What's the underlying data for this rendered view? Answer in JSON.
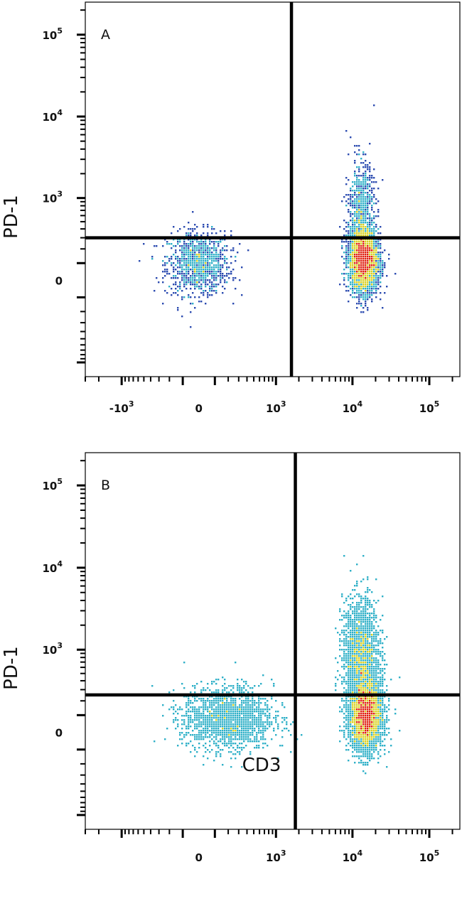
{
  "xlabel": "CD3",
  "ylabel": "PD-1",
  "chart_data": [
    {
      "type": "scatter",
      "panel_label": "A",
      "xlabel": "",
      "ylabel": "PD-1",
      "x_scale": "biexponential",
      "y_scale": "biexponential",
      "xlim": [
        -3000,
        250000
      ],
      "ylim": [
        -1500,
        250000
      ],
      "x_ticks": [
        {
          "value": -1000,
          "base": "-10",
          "exp": "3"
        },
        {
          "value": 0,
          "base": "0",
          "exp": ""
        },
        {
          "value": 1000,
          "base": "10",
          "exp": "3"
        },
        {
          "value": 10000,
          "base": "10",
          "exp": "4"
        },
        {
          "value": 100000,
          "base": "10",
          "exp": "5"
        }
      ],
      "y_ticks": [
        {
          "value": 0,
          "base": "0",
          "exp": ""
        },
        {
          "value": 1000,
          "base": "10",
          "exp": "3"
        },
        {
          "value": 10000,
          "base": "10",
          "exp": "4"
        },
        {
          "value": 100000,
          "base": "10",
          "exp": "5"
        }
      ],
      "quadrant_gate": {
        "x": 1600,
        "y": 300
      },
      "populations": [
        {
          "name": "CD3-negative",
          "center": [
            0,
            100
          ],
          "count": 380,
          "sx": 0.35,
          "sy": 0.35
        },
        {
          "name": "CD3-positive PD-1 low",
          "center": [
            14000,
            120
          ],
          "count": 1400,
          "sx": 0.16,
          "sy": 0.35
        },
        {
          "name": "CD3-positive PD-1 high",
          "center": [
            13000,
            700
          ],
          "count": 260,
          "sx": 0.14,
          "sy": 0.55
        }
      ]
    },
    {
      "type": "scatter",
      "panel_label": "B",
      "xlabel": "CD3",
      "ylabel": "PD-1",
      "x_scale": "biexponential",
      "y_scale": "biexponential",
      "xlim": [
        -3000,
        250000
      ],
      "ylim": [
        -1500,
        250000
      ],
      "x_ticks": [
        {
          "value": 0,
          "base": "0",
          "exp": ""
        },
        {
          "value": 1000,
          "base": "10",
          "exp": "3"
        },
        {
          "value": 10000,
          "base": "10",
          "exp": "4"
        },
        {
          "value": 100000,
          "base": "10",
          "exp": "5"
        }
      ],
      "y_ticks": [
        {
          "value": 0,
          "base": "0",
          "exp": ""
        },
        {
          "value": 1000,
          "base": "10",
          "exp": "3"
        },
        {
          "value": 10000,
          "base": "10",
          "exp": "4"
        },
        {
          "value": 100000,
          "base": "10",
          "exp": "5"
        }
      ],
      "quadrant_gate": {
        "x": 1800,
        "y": 250
      },
      "populations": [
        {
          "name": "CD3-negative",
          "center": [
            200,
            80
          ],
          "count": 600,
          "sx": 0.5,
          "sy": 0.35
        },
        {
          "name": "CD3-positive PD-1 low",
          "center": [
            15000,
            100
          ],
          "count": 1500,
          "sx": 0.18,
          "sy": 0.38
        },
        {
          "name": "CD3-positive PD-1 high",
          "center": [
            13000,
            900
          ],
          "count": 700,
          "sx": 0.2,
          "sy": 0.6
        }
      ]
    }
  ],
  "colors": {
    "axis": "#000000",
    "gate": "#000000",
    "density_low": "#2b4bb0",
    "density_mid": "#2fb0c8",
    "density_high": "#d8d020",
    "density_peak": "#e02010"
  }
}
